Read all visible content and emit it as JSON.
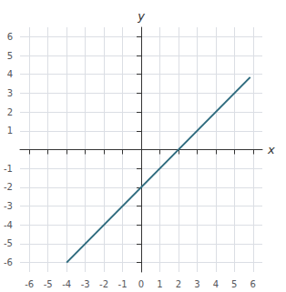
{
  "chart_data": {
    "type": "line",
    "x": [
      -4.0,
      5.85
    ],
    "values": [
      -6.0,
      3.85
    ],
    "color": "#2e6b7e",
    "xlabel": "x",
    "ylabel": "y",
    "xlim": [
      -6.5,
      6.5
    ],
    "ylim": [
      -6.5,
      6.5
    ],
    "xticks": [
      -6,
      -5,
      -4,
      -3,
      -2,
      -1,
      0,
      1,
      2,
      3,
      4,
      5,
      6
    ],
    "yticks": [
      -6,
      -5,
      -4,
      -3,
      -2,
      -1,
      1,
      2,
      3,
      4,
      5,
      6
    ],
    "grid": true
  }
}
